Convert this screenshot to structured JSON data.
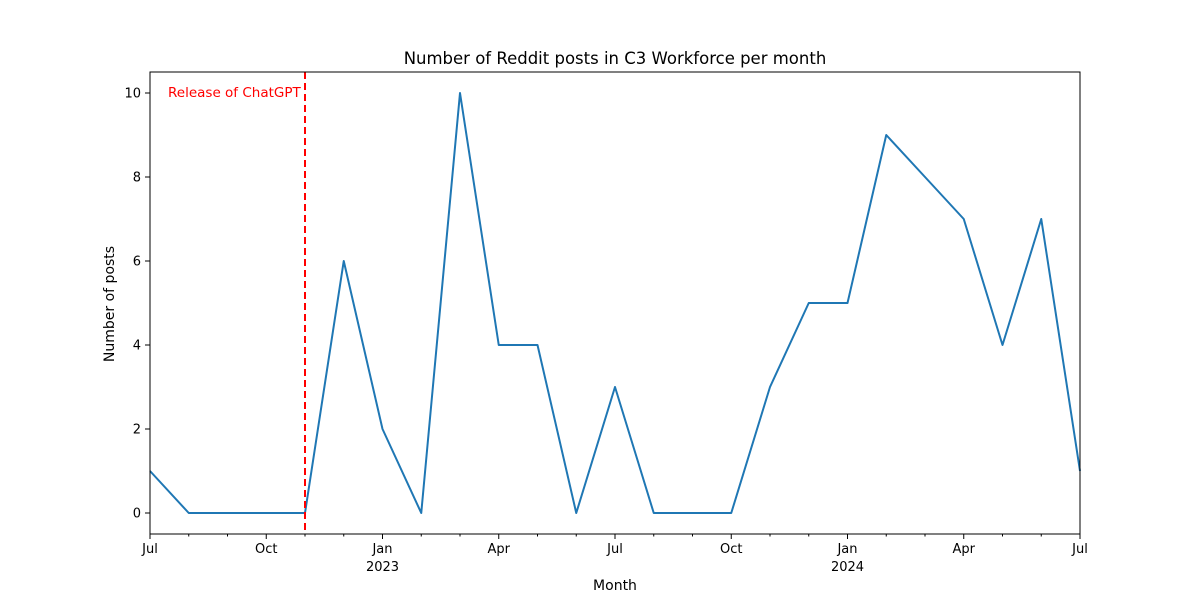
{
  "chart_data": {
    "type": "line",
    "title": "Number of Reddit posts in C3 Workforce per month",
    "xlabel": "Month",
    "ylabel": "Number of posts",
    "ylim": [
      -0.5,
      10.5
    ],
    "yticks": [
      0,
      2,
      4,
      6,
      8,
      10
    ],
    "xticks": [
      {
        "month": 0,
        "label": "Jul",
        "sublabel": ""
      },
      {
        "month": 3,
        "label": "Oct",
        "sublabel": ""
      },
      {
        "month": 6,
        "label": "Jan",
        "sublabel": "2023"
      },
      {
        "month": 9,
        "label": "Apr",
        "sublabel": ""
      },
      {
        "month": 12,
        "label": "Jul",
        "sublabel": ""
      },
      {
        "month": 15,
        "label": "Oct",
        "sublabel": ""
      },
      {
        "month": 18,
        "label": "Jan",
        "sublabel": "2024"
      },
      {
        "month": 21,
        "label": "Apr",
        "sublabel": ""
      },
      {
        "month": 24,
        "label": "Jul",
        "sublabel": ""
      }
    ],
    "x": [
      "2022-07",
      "2022-08",
      "2022-09",
      "2022-10",
      "2022-11",
      "2022-12",
      "2023-01",
      "2023-02",
      "2023-03",
      "2023-04",
      "2023-05",
      "2023-06",
      "2023-07",
      "2023-08",
      "2023-09",
      "2023-10",
      "2023-11",
      "2023-12",
      "2024-01",
      "2024-02",
      "2024-03",
      "2024-04",
      "2024-05",
      "2024-06",
      "2024-07"
    ],
    "series": [
      {
        "color": "#1f77b4",
        "values": [
          1,
          0,
          0,
          0,
          0,
          6,
          2,
          0,
          10,
          4,
          4,
          0,
          3,
          0,
          0,
          0,
          3,
          5,
          5,
          9,
          8,
          7,
          4,
          7,
          1
        ]
      }
    ],
    "annotation": {
      "x": "2022-11",
      "label": "Release of ChatGPT",
      "color": "#ff0000",
      "style": "dashed"
    },
    "grid": false
  }
}
